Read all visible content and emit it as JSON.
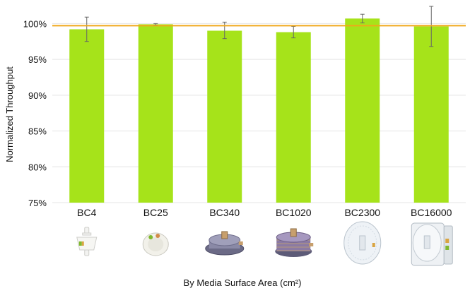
{
  "chart_data": {
    "type": "bar",
    "title": "",
    "xlabel": "By Media Surface Area (cm²)",
    "ylabel": "Normalized Throughput",
    "categories": [
      "BC4",
      "BC25",
      "BC340",
      "BC1020",
      "BC2300",
      "BC16000"
    ],
    "values": [
      99.2,
      99.9,
      99.0,
      98.8,
      100.7,
      99.6
    ],
    "error_bars": [
      {
        "low": 97.5,
        "high": 100.9
      },
      {
        "low": 99.8,
        "high": 100.0
      },
      {
        "low": 97.9,
        "high": 100.2
      },
      {
        "low": 98.0,
        "high": 99.6
      },
      {
        "low": 100.1,
        "high": 101.3
      },
      {
        "low": 96.8,
        "high": 102.4
      }
    ],
    "reference_line": 99.7,
    "ylim": [
      75,
      102.5
    ],
    "yticks": [
      75,
      80,
      85,
      90,
      95,
      100
    ],
    "ytick_labels": [
      "75%",
      "80%",
      "85%",
      "90%",
      "95%",
      "100%"
    ],
    "grid": true,
    "colors": {
      "bar": "#a6e31a",
      "reference_line": "#f0a81a",
      "grid": "#e4e4e4",
      "error_bar": "#666666"
    },
    "product_images": [
      {
        "category": "BC4",
        "icon": "small-capsule-filter-icon"
      },
      {
        "category": "BC25",
        "icon": "round-capsule-filter-icon"
      },
      {
        "category": "BC340",
        "icon": "disc-capsule-filter-icon"
      },
      {
        "category": "BC1020",
        "icon": "stacked-disc-filter-icon"
      },
      {
        "category": "BC2300",
        "icon": "large-disc-filter-icon"
      },
      {
        "category": "BC16000",
        "icon": "large-stacked-filter-icon"
      }
    ]
  }
}
